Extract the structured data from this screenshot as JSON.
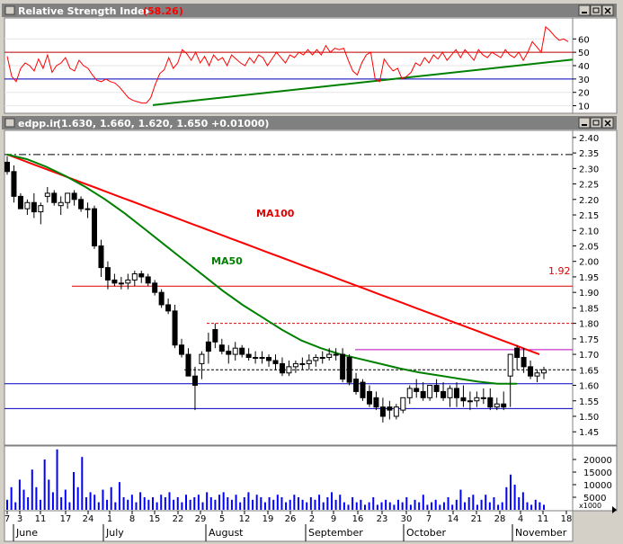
{
  "rsi_panel": {
    "title": "Relative Strength Index",
    "value": "(58.26)",
    "ticks": [
      "60",
      "50",
      "40",
      "30",
      "20",
      "10"
    ]
  },
  "price_panel": {
    "title_symbol": "edpp.in",
    "title_values": "(1.630, 1.660, 1.620, 1.650 +0.01000)",
    "ticks": [
      "2.40",
      "2.35",
      "2.30",
      "2.25",
      "2.20",
      "2.15",
      "2.10",
      "2.05",
      "2.00",
      "1.95",
      "1.90",
      "1.85",
      "1.80",
      "1.75",
      "1.70",
      "1.65",
      "1.60",
      "1.55",
      "1.50",
      "1.45"
    ],
    "ma100_label": "MA100",
    "ma50_label": "MA50",
    "level_label": "1.92"
  },
  "volume_panel": {
    "ticks": [
      "20000",
      "15000",
      "10000",
      "5000"
    ],
    "unit_label": "x1000"
  },
  "x_axis": {
    "day_ticks": [
      "7",
      "3",
      "11",
      "17",
      "24",
      "1",
      "8",
      "15",
      "22",
      "29",
      "5",
      "12",
      "19",
      "26",
      "2",
      "9",
      "16",
      "23",
      "30",
      "7",
      "14",
      "21",
      "28",
      "4",
      "11",
      "18"
    ],
    "months": [
      "June",
      "July",
      "August",
      "September",
      "October",
      "November"
    ]
  },
  "colors": {
    "background": "#ffffff",
    "title_bar": "#808080",
    "rsi_line": "#ff0000",
    "ma100": "#ff0000",
    "ma50": "#008000",
    "trend_line": "#008000",
    "volume": "#0000ff",
    "candle": "#000000"
  },
  "chart_data": [
    {
      "type": "line",
      "title": "Relative Strength Index",
      "ylim": [
        5,
        75
      ],
      "reference_levels": [
        50,
        30
      ],
      "trend_line": [
        [
          0,
          10.5
        ],
        [
          126,
          44.5
        ]
      ],
      "series": [
        {
          "values": [
            47,
            32,
            28,
            38,
            42,
            40,
            36,
            45,
            38,
            48,
            35,
            40,
            42,
            46,
            38,
            36,
            44,
            40,
            38,
            33,
            29,
            28,
            30,
            28,
            27,
            24,
            20,
            16,
            14,
            13,
            12,
            12,
            16,
            26,
            34,
            37,
            46,
            38,
            42,
            52,
            49,
            44,
            50,
            42,
            47,
            40,
            48,
            44,
            46,
            40,
            48,
            45,
            42,
            40,
            46,
            42,
            48,
            46,
            40,
            45,
            50,
            46,
            42,
            48,
            46,
            50,
            48,
            52,
            48,
            52,
            48,
            55,
            50,
            53,
            52,
            53,
            44,
            36,
            33,
            42,
            48,
            50,
            30,
            28,
            45,
            40,
            36,
            38,
            30,
            32,
            35,
            42,
            40,
            46,
            42,
            48,
            45,
            50,
            44,
            48,
            52,
            46,
            52,
            48,
            44,
            52,
            48,
            46,
            50,
            48,
            46,
            52,
            48,
            46,
            50,
            44,
            50,
            58,
            54,
            50,
            69,
            66,
            62,
            59,
            60,
            58
          ]
        }
      ]
    },
    {
      "type": "candlestick",
      "title": "edpp.in (1.630, 1.660, 1.620, 1.650 +0.01000)",
      "ylim": [
        1.41,
        2.42
      ],
      "reference_levels": [
        2.345,
        1.92,
        1.8,
        1.715,
        1.65,
        1.605,
        1.525
      ],
      "level_labels": [
        "1.92"
      ],
      "series": [
        {
          "name": "MA100",
          "values": [
            2.345,
            2.33,
            2.315,
            2.3,
            2.285,
            2.27,
            2.255,
            2.24,
            2.225,
            2.21,
            2.195,
            2.18,
            2.165,
            2.15,
            2.135,
            2.12,
            2.105,
            2.09,
            2.075,
            2.06,
            2.045,
            2.03,
            2.015,
            2.0,
            1.985,
            1.97,
            1.955,
            1.94,
            1.925,
            1.91,
            1.895,
            1.88,
            1.865,
            1.85,
            1.835,
            1.82,
            1.805,
            1.79,
            1.775,
            1.76,
            1.745,
            1.73,
            1.715,
            1.7
          ]
        },
        {
          "name": "MA50",
          "values": [
            2.345,
            2.33,
            2.305,
            2.275,
            2.24,
            2.2,
            2.155,
            2.105,
            2.055,
            2.005,
            1.955,
            1.905,
            1.86,
            1.82,
            1.78,
            1.745,
            1.72,
            1.7,
            1.685,
            1.67,
            1.655,
            1.642,
            1.632,
            1.622,
            1.612,
            1.605,
            1.605
          ]
        },
        {
          "name": "Open",
          "values": [
            2.32,
            2.29,
            2.21,
            2.17,
            2.19,
            2.16,
            2.21,
            2.22,
            2.18,
            2.19,
            2.22,
            2.2,
            2.17,
            2.17,
            2.05,
            1.98,
            1.94,
            1.93,
            1.93,
            1.94,
            1.96,
            1.95,
            1.93,
            1.9,
            1.86,
            1.84,
            1.73,
            1.7,
            1.63,
            1.67,
            1.74,
            1.78,
            1.73,
            1.71,
            1.7,
            1.72,
            1.7,
            1.69,
            1.69,
            1.69,
            1.68,
            1.67,
            1.64,
            1.66,
            1.67,
            1.67,
            1.68,
            1.69,
            1.69,
            1.7,
            1.7,
            1.69,
            1.62,
            1.61,
            1.58,
            1.56,
            1.53,
            1.53,
            1.5,
            1.52,
            1.56,
            1.59,
            1.58,
            1.56,
            1.6,
            1.58,
            1.56,
            1.59,
            1.56,
            1.55,
            1.55,
            1.56,
            1.56,
            1.53,
            1.54,
            1.63,
            1.72,
            1.69,
            1.66,
            1.63,
            1.64
          ]
        },
        {
          "name": "High",
          "values": [
            2.34,
            2.31,
            2.22,
            2.2,
            2.22,
            2.19,
            2.24,
            2.23,
            2.21,
            2.22,
            2.23,
            2.21,
            2.19,
            2.18,
            2.07,
            2.0,
            1.96,
            1.95,
            1.96,
            1.97,
            1.97,
            1.96,
            1.94,
            1.91,
            1.88,
            1.86,
            1.75,
            1.72,
            1.66,
            1.71,
            1.77,
            1.8,
            1.75,
            1.73,
            1.74,
            1.73,
            1.72,
            1.71,
            1.71,
            1.7,
            1.7,
            1.69,
            1.68,
            1.68,
            1.69,
            1.7,
            1.7,
            1.71,
            1.72,
            1.72,
            1.72,
            1.7,
            1.64,
            1.62,
            1.6,
            1.58,
            1.56,
            1.55,
            1.54,
            1.56,
            1.6,
            1.62,
            1.61,
            1.6,
            1.62,
            1.61,
            1.6,
            1.61,
            1.6,
            1.58,
            1.58,
            1.59,
            1.59,
            1.56,
            1.58,
            1.7,
            1.73,
            1.72,
            1.68,
            1.65,
            1.66
          ]
        },
        {
          "name": "Low",
          "values": [
            2.28,
            2.19,
            2.17,
            2.15,
            2.14,
            2.12,
            2.19,
            2.18,
            2.15,
            2.17,
            2.18,
            2.16,
            2.14,
            2.04,
            1.95,
            1.91,
            1.92,
            1.91,
            1.91,
            1.92,
            1.93,
            1.92,
            1.89,
            1.85,
            1.83,
            1.72,
            1.69,
            1.63,
            1.52,
            1.62,
            1.67,
            1.72,
            1.7,
            1.67,
            1.68,
            1.69,
            1.68,
            1.67,
            1.67,
            1.66,
            1.65,
            1.63,
            1.63,
            1.64,
            1.65,
            1.65,
            1.66,
            1.67,
            1.68,
            1.68,
            1.61,
            1.6,
            1.57,
            1.55,
            1.53,
            1.52,
            1.48,
            1.49,
            1.49,
            1.51,
            1.54,
            1.56,
            1.55,
            1.55,
            1.56,
            1.55,
            1.53,
            1.53,
            1.53,
            1.52,
            1.53,
            1.54,
            1.52,
            1.52,
            1.52,
            1.53,
            1.65,
            1.64,
            1.62,
            1.61,
            1.62
          ]
        },
        {
          "name": "Close",
          "values": [
            2.29,
            2.21,
            2.17,
            2.19,
            2.16,
            2.18,
            2.22,
            2.19,
            2.19,
            2.22,
            2.2,
            2.17,
            2.17,
            2.05,
            1.98,
            1.94,
            1.93,
            1.93,
            1.94,
            1.96,
            1.95,
            1.93,
            1.9,
            1.86,
            1.84,
            1.73,
            1.7,
            1.63,
            1.6,
            1.7,
            1.71,
            1.74,
            1.71,
            1.7,
            1.72,
            1.7,
            1.69,
            1.69,
            1.69,
            1.68,
            1.67,
            1.64,
            1.66,
            1.67,
            1.67,
            1.68,
            1.69,
            1.69,
            1.7,
            1.7,
            1.62,
            1.61,
            1.58,
            1.56,
            1.54,
            1.53,
            1.5,
            1.52,
            1.53,
            1.56,
            1.59,
            1.58,
            1.56,
            1.6,
            1.58,
            1.56,
            1.59,
            1.56,
            1.55,
            1.55,
            1.56,
            1.56,
            1.53,
            1.54,
            1.53,
            1.7,
            1.69,
            1.66,
            1.63,
            1.64,
            1.65
          ]
        }
      ]
    },
    {
      "type": "bar",
      "ylim": [
        0,
        25000
      ],
      "values": [
        4000,
        9000,
        3000,
        12000,
        8000,
        5000,
        16000,
        9000,
        4000,
        20000,
        12000,
        7000,
        24000,
        5000,
        8000,
        3000,
        15000,
        9000,
        21000,
        5000,
        7000,
        6000,
        3000,
        8000,
        4000,
        9000,
        3000,
        11000,
        5000,
        4000,
        6000,
        3000,
        7000,
        5000,
        4000,
        5000,
        3000,
        6000,
        5000,
        7000,
        4000,
        5000,
        3000,
        6000,
        4000,
        5000,
        6000,
        3000,
        7000,
        5000,
        4000,
        6000,
        7000,
        5000,
        4000,
        6000,
        3000,
        5000,
        7000,
        4000,
        6000,
        5000,
        3000,
        5000,
        4000,
        6000,
        5000,
        3000,
        4000,
        6000,
        5000,
        4000,
        3000,
        5000,
        4000,
        6000,
        3000,
        5000,
        7000,
        4000,
        6000,
        3000,
        2000,
        5000,
        3000,
        4000,
        2000,
        3000,
        5000,
        2000,
        3000,
        4000,
        3000,
        2000,
        4000,
        3000,
        5000,
        2000,
        4000,
        3000,
        6000,
        2000,
        3000,
        4000,
        2000,
        3000,
        5000,
        2000,
        4000,
        8000,
        3000,
        5000,
        6000,
        2000,
        4000,
        6000,
        3000,
        5000,
        2000,
        3000,
        9000,
        14000,
        10000,
        5000,
        7000,
        3000,
        2000,
        4000,
        3000,
        2000
      ]
    }
  ]
}
